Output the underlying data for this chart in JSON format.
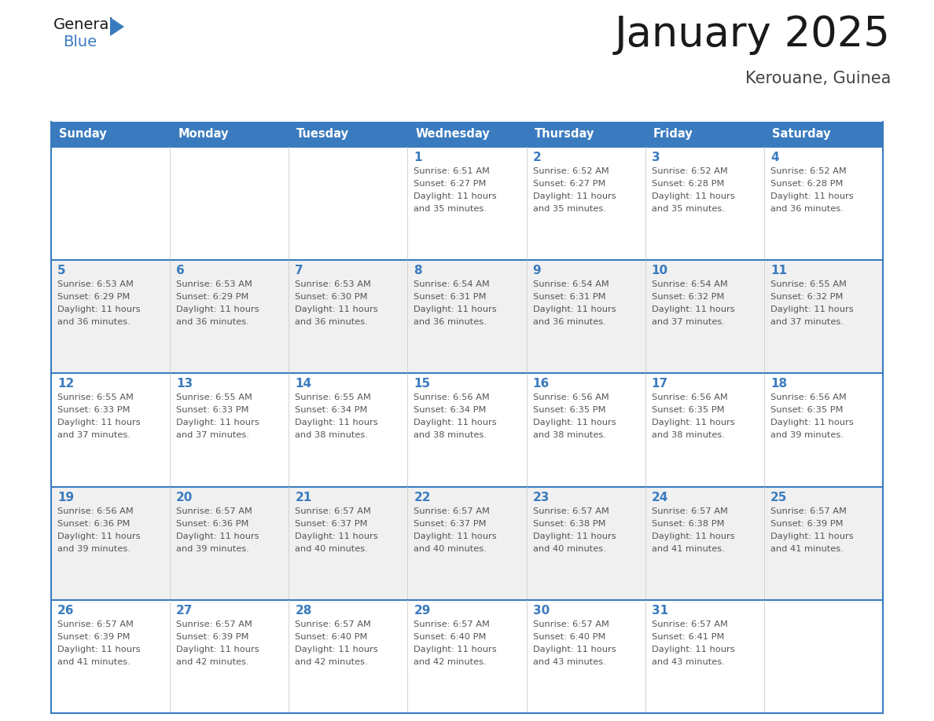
{
  "title": "January 2025",
  "subtitle": "Kerouane, Guinea",
  "weekdays": [
    "Sunday",
    "Monday",
    "Tuesday",
    "Wednesday",
    "Thursday",
    "Friday",
    "Saturday"
  ],
  "header_bg": "#3A7BBF",
  "header_text": "#FFFFFF",
  "cell_bg_white": "#FFFFFF",
  "cell_bg_gray": "#F0F0F0",
  "row_border_color": "#3A7BBF",
  "col_border_color": "#CCCCCC",
  "day_text_color": "#3A7BBF",
  "content_text_color": "#555555",
  "title_color": "#1A1A1A",
  "subtitle_color": "#444444",
  "logo_general_color": "#1A1A1A",
  "logo_blue_color": "#3A7BBF",
  "calendar": [
    [
      {
        "day": "",
        "sunrise": "",
        "sunset": "",
        "daylight": ""
      },
      {
        "day": "",
        "sunrise": "",
        "sunset": "",
        "daylight": ""
      },
      {
        "day": "",
        "sunrise": "",
        "sunset": "",
        "daylight": ""
      },
      {
        "day": "1",
        "sunrise": "6:51 AM",
        "sunset": "6:27 PM",
        "daylight": "11 hours and 35 minutes."
      },
      {
        "day": "2",
        "sunrise": "6:52 AM",
        "sunset": "6:27 PM",
        "daylight": "11 hours and 35 minutes."
      },
      {
        "day": "3",
        "sunrise": "6:52 AM",
        "sunset": "6:28 PM",
        "daylight": "11 hours and 35 minutes."
      },
      {
        "day": "4",
        "sunrise": "6:52 AM",
        "sunset": "6:28 PM",
        "daylight": "11 hours and 36 minutes."
      }
    ],
    [
      {
        "day": "5",
        "sunrise": "6:53 AM",
        "sunset": "6:29 PM",
        "daylight": "11 hours and 36 minutes."
      },
      {
        "day": "6",
        "sunrise": "6:53 AM",
        "sunset": "6:29 PM",
        "daylight": "11 hours and 36 minutes."
      },
      {
        "day": "7",
        "sunrise": "6:53 AM",
        "sunset": "6:30 PM",
        "daylight": "11 hours and 36 minutes."
      },
      {
        "day": "8",
        "sunrise": "6:54 AM",
        "sunset": "6:31 PM",
        "daylight": "11 hours and 36 minutes."
      },
      {
        "day": "9",
        "sunrise": "6:54 AM",
        "sunset": "6:31 PM",
        "daylight": "11 hours and 36 minutes."
      },
      {
        "day": "10",
        "sunrise": "6:54 AM",
        "sunset": "6:32 PM",
        "daylight": "11 hours and 37 minutes."
      },
      {
        "day": "11",
        "sunrise": "6:55 AM",
        "sunset": "6:32 PM",
        "daylight": "11 hours and 37 minutes."
      }
    ],
    [
      {
        "day": "12",
        "sunrise": "6:55 AM",
        "sunset": "6:33 PM",
        "daylight": "11 hours and 37 minutes."
      },
      {
        "day": "13",
        "sunrise": "6:55 AM",
        "sunset": "6:33 PM",
        "daylight": "11 hours and 37 minutes."
      },
      {
        "day": "14",
        "sunrise": "6:55 AM",
        "sunset": "6:34 PM",
        "daylight": "11 hours and 38 minutes."
      },
      {
        "day": "15",
        "sunrise": "6:56 AM",
        "sunset": "6:34 PM",
        "daylight": "11 hours and 38 minutes."
      },
      {
        "day": "16",
        "sunrise": "6:56 AM",
        "sunset": "6:35 PM",
        "daylight": "11 hours and 38 minutes."
      },
      {
        "day": "17",
        "sunrise": "6:56 AM",
        "sunset": "6:35 PM",
        "daylight": "11 hours and 38 minutes."
      },
      {
        "day": "18",
        "sunrise": "6:56 AM",
        "sunset": "6:35 PM",
        "daylight": "11 hours and 39 minutes."
      }
    ],
    [
      {
        "day": "19",
        "sunrise": "6:56 AM",
        "sunset": "6:36 PM",
        "daylight": "11 hours and 39 minutes."
      },
      {
        "day": "20",
        "sunrise": "6:57 AM",
        "sunset": "6:36 PM",
        "daylight": "11 hours and 39 minutes."
      },
      {
        "day": "21",
        "sunrise": "6:57 AM",
        "sunset": "6:37 PM",
        "daylight": "11 hours and 40 minutes."
      },
      {
        "day": "22",
        "sunrise": "6:57 AM",
        "sunset": "6:37 PM",
        "daylight": "11 hours and 40 minutes."
      },
      {
        "day": "23",
        "sunrise": "6:57 AM",
        "sunset": "6:38 PM",
        "daylight": "11 hours and 40 minutes."
      },
      {
        "day": "24",
        "sunrise": "6:57 AM",
        "sunset": "6:38 PM",
        "daylight": "11 hours and 41 minutes."
      },
      {
        "day": "25",
        "sunrise": "6:57 AM",
        "sunset": "6:39 PM",
        "daylight": "11 hours and 41 minutes."
      }
    ],
    [
      {
        "day": "26",
        "sunrise": "6:57 AM",
        "sunset": "6:39 PM",
        "daylight": "11 hours and 41 minutes."
      },
      {
        "day": "27",
        "sunrise": "6:57 AM",
        "sunset": "6:39 PM",
        "daylight": "11 hours and 42 minutes."
      },
      {
        "day": "28",
        "sunrise": "6:57 AM",
        "sunset": "6:40 PM",
        "daylight": "11 hours and 42 minutes."
      },
      {
        "day": "29",
        "sunrise": "6:57 AM",
        "sunset": "6:40 PM",
        "daylight": "11 hours and 42 minutes."
      },
      {
        "day": "30",
        "sunrise": "6:57 AM",
        "sunset": "6:40 PM",
        "daylight": "11 hours and 43 minutes."
      },
      {
        "day": "31",
        "sunrise": "6:57 AM",
        "sunset": "6:41 PM",
        "daylight": "11 hours and 43 minutes."
      },
      {
        "day": "",
        "sunrise": "",
        "sunset": "",
        "daylight": ""
      }
    ]
  ]
}
